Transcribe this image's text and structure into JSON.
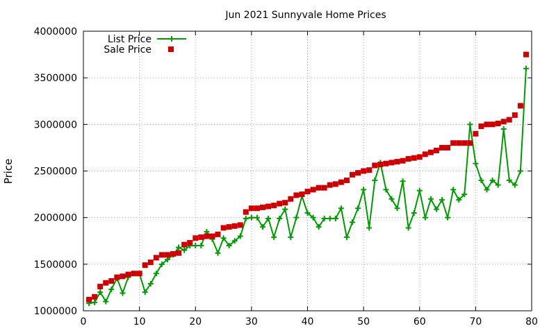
{
  "chart_data": {
    "type": "line",
    "title": "Jun 2021 Sunnyvale Home Prices",
    "xlabel": "",
    "ylabel": "Price",
    "xlim": [
      0,
      80
    ],
    "ylim": [
      1000000,
      4000000
    ],
    "x_ticks": [
      0,
      10,
      20,
      30,
      40,
      50,
      60,
      70,
      80
    ],
    "y_ticks": [
      1000000,
      1500000,
      2000000,
      2500000,
      3000000,
      3500000,
      4000000
    ],
    "grid": true,
    "legend_position": "top-left",
    "x": [
      1,
      2,
      3,
      4,
      5,
      6,
      7,
      8,
      9,
      10,
      11,
      12,
      13,
      14,
      15,
      16,
      17,
      18,
      19,
      20,
      21,
      22,
      23,
      24,
      25,
      26,
      27,
      28,
      29,
      30,
      31,
      32,
      33,
      34,
      35,
      36,
      37,
      38,
      39,
      40,
      41,
      42,
      43,
      44,
      45,
      46,
      47,
      48,
      49,
      50,
      51,
      52,
      53,
      54,
      55,
      56,
      57,
      58,
      59,
      60,
      61,
      62,
      63,
      64,
      65,
      66,
      67,
      68,
      69,
      70,
      71,
      72,
      73,
      74,
      75,
      76,
      77,
      78,
      79
    ],
    "series": [
      {
        "name": "List Price",
        "color": "#009900",
        "marker": "plus",
        "values": [
          1080000,
          1090000,
          1200000,
          1100000,
          1230000,
          1350000,
          1190000,
          1360000,
          1400000,
          1400000,
          1200000,
          1290000,
          1400000,
          1500000,
          1550000,
          1600000,
          1680000,
          1650000,
          1700000,
          1700000,
          1700000,
          1850000,
          1770000,
          1620000,
          1780000,
          1700000,
          1750000,
          1800000,
          1990000,
          2000000,
          2000000,
          1900000,
          1990000,
          1790000,
          1990000,
          2090000,
          1790000,
          2000000,
          2230000,
          2050000,
          2000000,
          1900000,
          1990000,
          1990000,
          1990000,
          2100000,
          1790000,
          1950000,
          2100000,
          2300000,
          1890000,
          2400000,
          2590000,
          2300000,
          2200000,
          2100000,
          2390000,
          1890000,
          2050000,
          2290000,
          2000000,
          2200000,
          2090000,
          2190000,
          2000000,
          2300000,
          2190000,
          2250000,
          3000000,
          2580000,
          2400000,
          2300000,
          2400000,
          2350000,
          2950000,
          2400000,
          2350000,
          2500000,
          3600000
        ]
      },
      {
        "name": "Sale Price",
        "color": "#cc0000",
        "marker": "square",
        "values": [
          1120000,
          1150000,
          1260000,
          1300000,
          1320000,
          1360000,
          1370000,
          1390000,
          1400000,
          1400000,
          1490000,
          1520000,
          1570000,
          1600000,
          1600000,
          1610000,
          1620000,
          1710000,
          1730000,
          1780000,
          1790000,
          1800000,
          1800000,
          1820000,
          1890000,
          1900000,
          1910000,
          1920000,
          2060000,
          2100000,
          2100000,
          2110000,
          2120000,
          2130000,
          2150000,
          2160000,
          2200000,
          2240000,
          2250000,
          2280000,
          2300000,
          2320000,
          2320000,
          2350000,
          2360000,
          2380000,
          2400000,
          2460000,
          2480000,
          2500000,
          2510000,
          2560000,
          2570000,
          2580000,
          2590000,
          2600000,
          2610000,
          2630000,
          2640000,
          2650000,
          2680000,
          2700000,
          2720000,
          2750000,
          2750000,
          2800000,
          2800000,
          2800000,
          2800000,
          2900000,
          2980000,
          3000000,
          3000000,
          3010000,
          3030000,
          3050000,
          3100000,
          3200000,
          3750000
        ]
      }
    ]
  }
}
